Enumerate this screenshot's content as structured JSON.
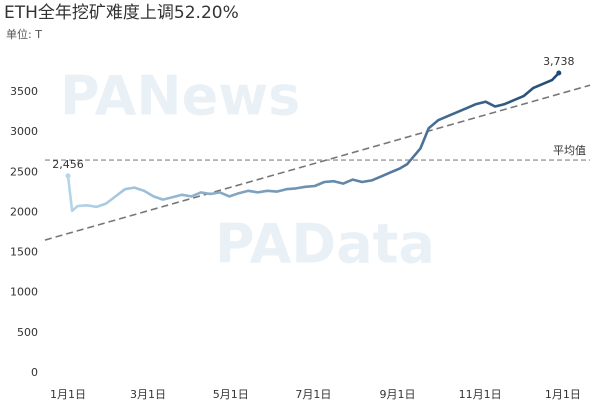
{
  "chart_data": {
    "type": "line",
    "title": "ETH全年挖矿难度上调52.20%",
    "subtitle": "单位: T",
    "watermarks": [
      "PANews",
      "PAData"
    ],
    "xlim": [
      -17,
      385
    ],
    "xticks": [
      {
        "value": 0,
        "label": "1月1日"
      },
      {
        "value": 59,
        "label": "3月1日"
      },
      {
        "value": 120,
        "label": "5月1日"
      },
      {
        "value": 181,
        "label": "7月1日"
      },
      {
        "value": 243,
        "label": "9月1日"
      },
      {
        "value": 304,
        "label": "11月1日"
      },
      {
        "value": 365,
        "label": "1月1日"
      }
    ],
    "ylim": [
      -100,
      3900
    ],
    "yticks": [
      0,
      500,
      1000,
      1500,
      2000,
      2500,
      3000,
      3500
    ],
    "grid": false,
    "gradient": [
      "#b5d5ea",
      "#1f4a75"
    ],
    "series": [
      {
        "x": [
          0,
          3,
          7,
          14,
          21,
          28,
          35,
          42,
          49,
          56,
          63,
          70,
          77,
          84,
          91,
          98,
          105,
          112,
          119,
          126,
          133,
          140,
          147,
          154,
          161,
          168,
          175,
          182,
          189,
          196,
          203,
          210,
          217,
          224,
          231,
          238,
          245,
          250,
          255,
          260,
          266,
          273,
          280,
          287,
          294,
          301,
          308,
          315,
          322,
          329,
          336,
          343,
          350,
          357,
          362
        ],
        "values": [
          2456,
          2020,
          2080,
          2090,
          2070,
          2110,
          2200,
          2290,
          2310,
          2270,
          2200,
          2160,
          2190,
          2220,
          2200,
          2250,
          2230,
          2250,
          2200,
          2240,
          2270,
          2250,
          2270,
          2260,
          2290,
          2300,
          2320,
          2330,
          2380,
          2390,
          2360,
          2410,
          2380,
          2400,
          2450,
          2500,
          2550,
          2600,
          2700,
          2800,
          3050,
          3150,
          3200,
          3250,
          3300,
          3350,
          3380,
          3320,
          3350,
          3400,
          3450,
          3550,
          3600,
          3650,
          3738
        ],
        "value_labels": [
          "2,456",
          null,
          null,
          null,
          null,
          null,
          null,
          null,
          null,
          null,
          null,
          null,
          null,
          null,
          null,
          null,
          null,
          null,
          null,
          null,
          null,
          null,
          null,
          null,
          null,
          null,
          null,
          null,
          null,
          null,
          null,
          null,
          null,
          null,
          null,
          null,
          null,
          null,
          null,
          null,
          null,
          null,
          null,
          null,
          null,
          null,
          null,
          null,
          null,
          null,
          null,
          null,
          null,
          null,
          "3,738"
        ]
      }
    ],
    "trendline": {
      "x": [
        0,
        365
      ],
      "values": [
        1738,
        3490
      ],
      "color": "#777777"
    },
    "reference_lines": [
      {
        "label": "平均值",
        "value": 2653,
        "color": "#999999"
      }
    ]
  }
}
